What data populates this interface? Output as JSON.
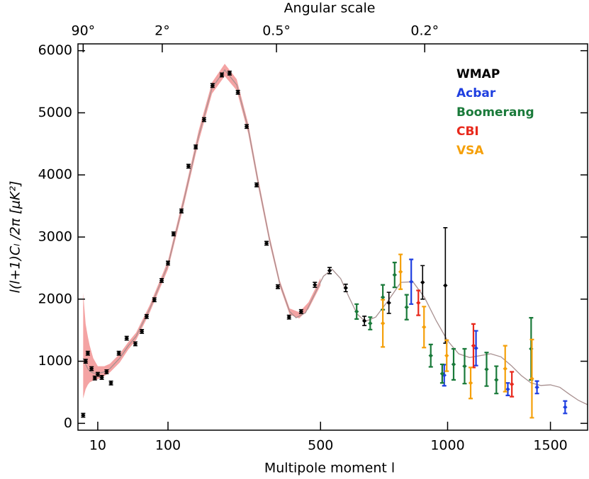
{
  "chart_data": {
    "type": "errorbar",
    "title": "Angular scale",
    "xlabel": "Multipole moment l",
    "ylabel": "l(l+1)Cₗ /2π [μK²]",
    "xscale": "power",
    "xpower": 0.6,
    "xlim": [
      0.47,
      1700
    ],
    "ylim": [
      -110,
      6110
    ],
    "xticks": [
      10,
      100,
      500,
      1000,
      1500
    ],
    "x2ticks": [
      {
        "value": 2,
        "label": "90°"
      },
      {
        "value": 90,
        "label": "2°"
      },
      {
        "value": 360,
        "label": "0.5°"
      },
      {
        "value": 900,
        "label": "0.2°"
      }
    ],
    "yticks": [
      0,
      1000,
      2000,
      3000,
      4000,
      5000,
      6000
    ],
    "legend": "upper right",
    "model": {
      "color": "#a89090",
      "x": [
        2,
        3,
        4,
        5,
        7,
        10,
        15,
        20,
        30,
        40,
        50,
        70,
        100,
        130,
        160,
        190,
        220,
        250,
        280,
        310,
        340,
        370,
        400,
        420,
        450,
        480,
        510,
        540,
        570,
        600,
        630,
        660,
        700,
        750,
        800,
        850,
        900,
        950,
        1000,
        1050,
        1100,
        1150,
        1200,
        1250,
        1300,
        1350,
        1400,
        1450,
        1500,
        1550,
        1600,
        1650,
        1700
      ],
      "values": [
        1050,
        950,
        880,
        840,
        810,
        800,
        830,
        880,
        1050,
        1250,
        1400,
        1850,
        2550,
        3600,
        4620,
        5400,
        5690,
        5450,
        4750,
        3800,
        2950,
        2250,
        1800,
        1700,
        1780,
        2080,
        2370,
        2480,
        2330,
        2030,
        1760,
        1640,
        1710,
        1980,
        2270,
        2280,
        2020,
        1650,
        1330,
        1120,
        1060,
        1090,
        1120,
        1070,
        930,
        770,
        650,
        610,
        620,
        580,
        470,
        370,
        300
      ]
    },
    "band": {
      "color": "#f4a3a3",
      "x": [
        2,
        3,
        4,
        5,
        7,
        10,
        15,
        20,
        30,
        40,
        50,
        70,
        100,
        130,
        160,
        190,
        220,
        250,
        280,
        310,
        340,
        370,
        400,
        430,
        460,
        500
      ],
      "lower": [
        400,
        550,
        620,
        660,
        690,
        710,
        760,
        820,
        980,
        1190,
        1340,
        1790,
        2480,
        3520,
        4530,
        5310,
        5590,
        5360,
        4670,
        3730,
        2890,
        2200,
        1750,
        1690,
        1840,
        2220
      ],
      "upper": [
        2100,
        1600,
        1400,
        1250,
        1050,
        920,
        920,
        960,
        1120,
        1310,
        1460,
        1910,
        2620,
        3680,
        4710,
        5490,
        5790,
        5540,
        4830,
        3870,
        3010,
        2300,
        1850,
        1790,
        1950,
        2340
      ]
    },
    "series": [
      {
        "name": "WMAP",
        "color": "#000000",
        "x": [
          2,
          3,
          4,
          6,
          8,
          10,
          13,
          17,
          21,
          29,
          38,
          49,
          58,
          65,
          77,
          89,
          100,
          110,
          125,
          139,
          154,
          172,
          191,
          213,
          232,
          253,
          276,
          303,
          331,
          364,
          398,
          436,
          481,
          531,
          588,
          657,
          752,
          891,
          990
        ],
        "values": [
          130,
          1000,
          1130,
          880,
          730,
          790,
          740,
          830,
          650,
          1130,
          1370,
          1280,
          1480,
          1720,
          1990,
          2300,
          2580,
          3050,
          3420,
          4140,
          4450,
          4890,
          5440,
          5610,
          5640,
          5330,
          4780,
          3840,
          2900,
          2200,
          1710,
          1800,
          2230,
          2460,
          2180,
          1650,
          1940,
          2270,
          2220
        ],
        "errors": [
          30,
          30,
          30,
          30,
          30,
          30,
          30,
          30,
          30,
          30,
          30,
          30,
          30,
          30,
          30,
          30,
          30,
          30,
          30,
          30,
          30,
          30,
          30,
          30,
          30,
          30,
          30,
          30,
          30,
          30,
          30,
          30,
          40,
          50,
          60,
          75,
          170,
          270,
          930
        ]
      },
      {
        "name": "Acbar",
        "color": "#1f3fe0",
        "x": [
          843,
          985,
          1130,
          1283,
          1430,
          1578
        ],
        "values": [
          2280,
          775,
          1210,
          550,
          580,
          260
        ],
        "errors": [
          360,
          170,
          280,
          100,
          100,
          100
        ]
      },
      {
        "name": "Boomerang",
        "color": "#1a7a3a",
        "x": [
          628,
          679,
          728,
          775,
          824,
          926,
          976,
          1027,
          1077,
          1180,
          1227,
          1400
        ],
        "values": [
          1800,
          1610,
          2030,
          2390,
          1870,
          1090,
          800,
          950,
          920,
          870,
          700,
          1200
        ],
        "errors": [
          120,
          100,
          200,
          200,
          200,
          180,
          150,
          250,
          280,
          270,
          220,
          500
        ]
      },
      {
        "name": "CBI",
        "color": "#e8291c",
        "x": [
          873,
          1118,
          1303
        ],
        "values": [
          1940,
          1250,
          630
        ],
        "errors": [
          200,
          350,
          200
        ]
      },
      {
        "name": "VSA",
        "color": "#f5a00a",
        "x": [
          728,
          799,
          897,
          996,
          1105,
          1270,
          1404
        ],
        "values": [
          1610,
          2440,
          1550,
          1090,
          650,
          880,
          720
        ],
        "errors": [
          380,
          280,
          330,
          250,
          250,
          370,
          630
        ]
      }
    ]
  }
}
